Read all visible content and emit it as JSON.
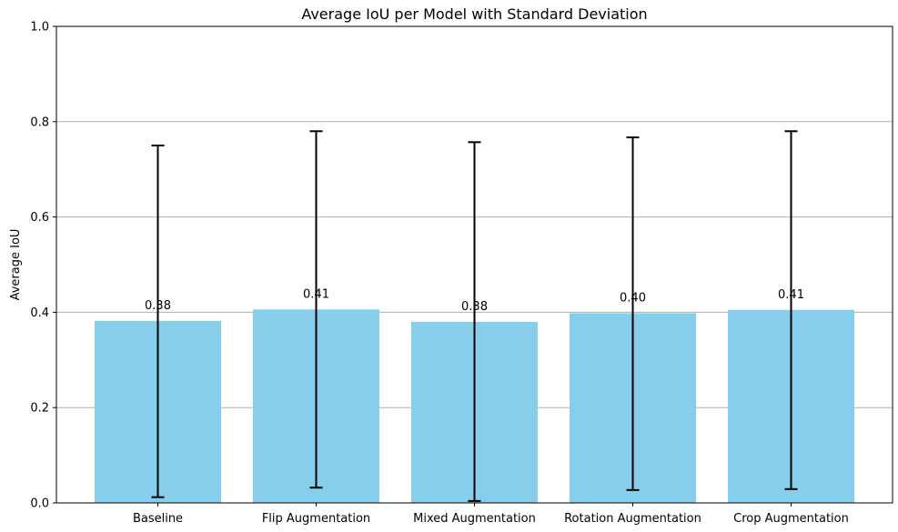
{
  "chart_data": {
    "type": "bar",
    "title": "Average IoU per Model with Standard Deviation",
    "xlabel": "",
    "ylabel": "Average IoU",
    "categories": [
      "Baseline",
      "Flip Augmentation",
      "Mixed Augmentation",
      "Rotation Augmentation",
      "Crop Augmentation"
    ],
    "values": [
      0.382,
      0.406,
      0.38,
      0.398,
      0.405
    ],
    "error_lower": [
      0.012,
      0.032,
      0.004,
      0.027,
      0.029
    ],
    "error_upper": [
      0.75,
      0.78,
      0.757,
      0.767,
      0.78
    ],
    "data_labels": [
      "0.38",
      "0.41",
      "0.38",
      "0.40",
      "0.41"
    ],
    "ylim": [
      0,
      1.0
    ],
    "yticks": [
      0.0,
      0.2,
      0.4,
      0.6,
      0.8,
      1.0
    ],
    "ytick_labels": [
      "0.0",
      "0.2",
      "0.4",
      "0.6",
      "0.8",
      "1.0"
    ],
    "grid": "y-axis only",
    "bar_color": "#87CEEB",
    "errorbar_color": "#000000",
    "grid_color": "#b0b0b0"
  }
}
